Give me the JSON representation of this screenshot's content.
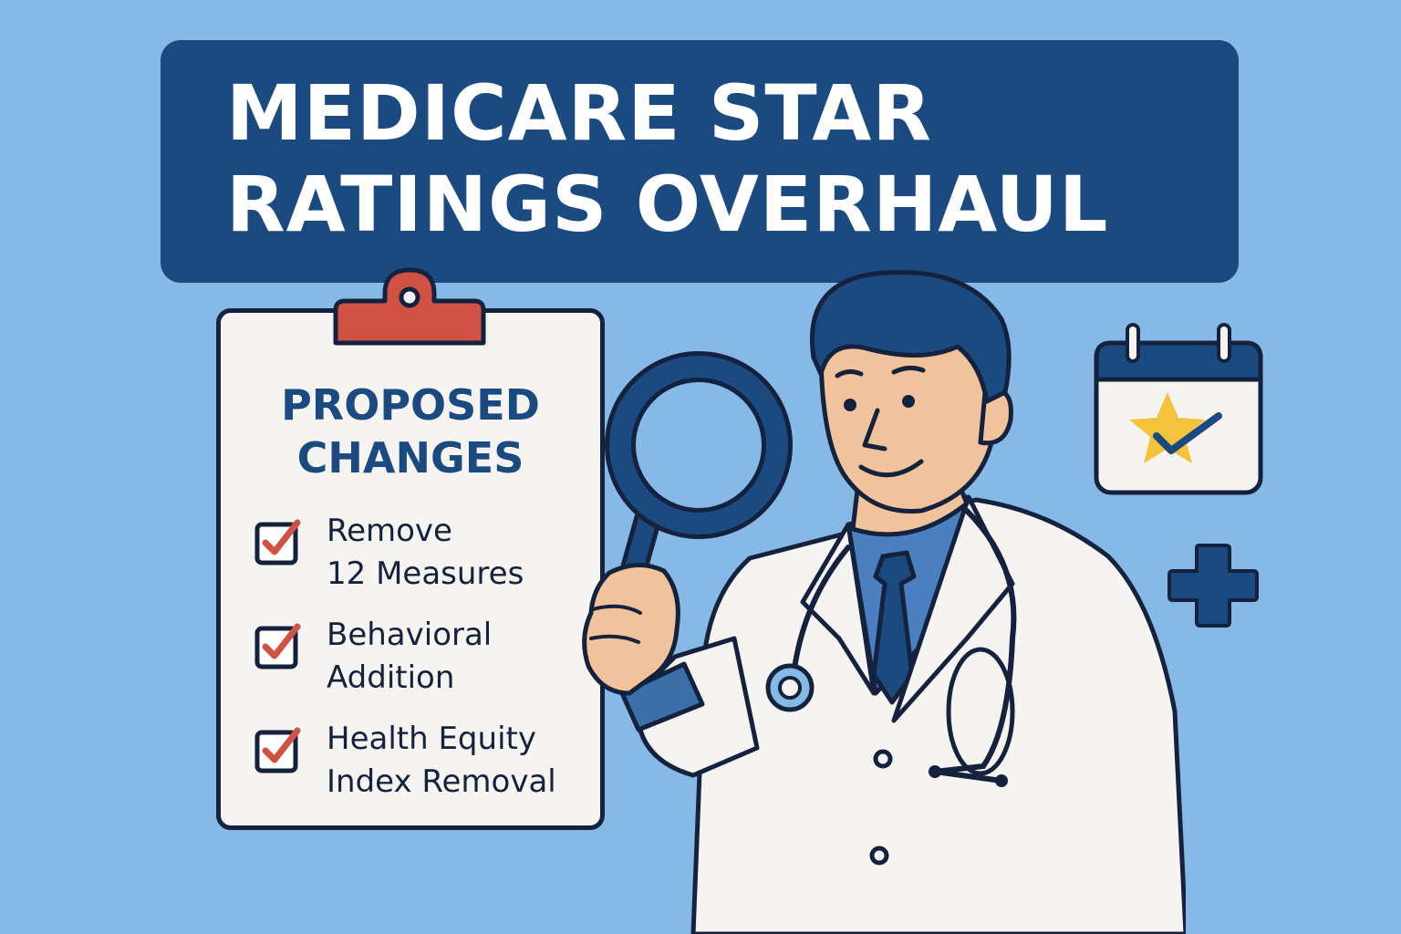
{
  "banner": {
    "title_line1": "MEDICARE STAR",
    "title_line2": "RATINGS OVERHAUL"
  },
  "clipboard": {
    "heading_line1": "PROPOSED",
    "heading_line2": "CHANGES",
    "items": [
      {
        "line1": "Remove",
        "line2": "12 Measures",
        "icon": "red-checkmark-icon"
      },
      {
        "line1": "Behavioral",
        "line2": "Addition",
        "icon": "red-checkmark-icon"
      },
      {
        "line1": "Health Equity",
        "line2": "Index Removal",
        "icon": "red-checkmark-icon"
      }
    ]
  },
  "icons": [
    "clipboard-clip-icon",
    "magnifying-glass-icon",
    "stethoscope-icon",
    "calendar-star-icon",
    "plus-icon"
  ],
  "colors": {
    "background": "#86b9e6",
    "banner": "#1b4a80",
    "outline": "#14223d",
    "check_red": "#cf5244",
    "star_yellow": "#f3c43b",
    "paper": "#f6f4f1"
  }
}
